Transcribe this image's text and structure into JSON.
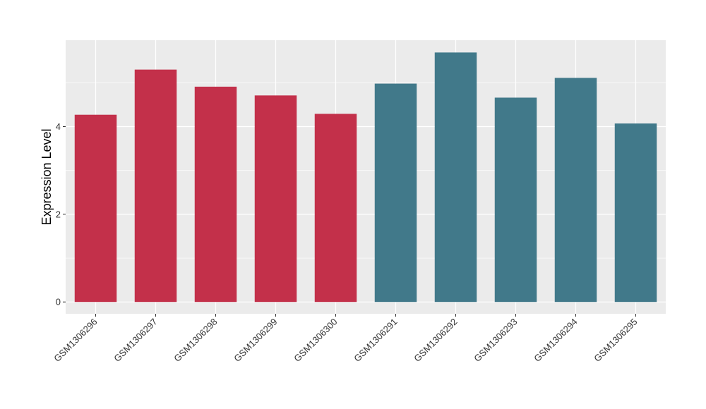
{
  "chart_data": {
    "type": "bar",
    "ylabel": "Expression Level",
    "xlabel": "",
    "title": "",
    "categories": [
      "GSM1306296",
      "GSM1306297",
      "GSM1306298",
      "GSM1306299",
      "GSM1306300",
      "GSM1306291",
      "GSM1306292",
      "GSM1306293",
      "GSM1306294",
      "GSM1306295"
    ],
    "values": [
      4.27,
      5.3,
      4.91,
      4.71,
      4.29,
      4.98,
      5.69,
      4.66,
      5.11,
      4.07
    ],
    "bar_colors": [
      "#c3304a",
      "#c3304a",
      "#c3304a",
      "#c3304a",
      "#c3304a",
      "#41798a",
      "#41798a",
      "#41798a",
      "#41798a",
      "#41798a"
    ],
    "ylim": [
      -0.27,
      5.97
    ],
    "yticks": [
      0,
      2,
      4
    ],
    "ytick_labels": [
      "0",
      "2",
      "4"
    ],
    "grid": true,
    "legend": "none",
    "panel_color": "#ebebeb",
    "grid_color": "#ffffff"
  }
}
